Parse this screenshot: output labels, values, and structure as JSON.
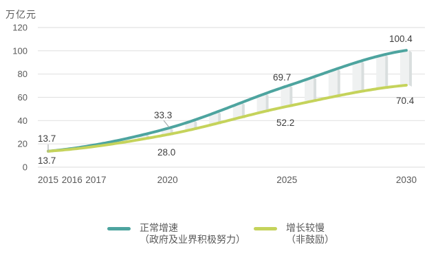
{
  "chart_data": {
    "type": "line",
    "unit_label": "万亿元",
    "x_ticks": [
      "2015",
      "2016",
      "2017",
      "2020",
      "2025",
      "2030"
    ],
    "y_ticks": [
      0,
      20,
      40,
      60,
      80,
      100,
      120
    ],
    "xlim": [
      2015,
      2030
    ],
    "ylim": [
      0,
      120
    ],
    "grid": "horizontal",
    "legend_position": "bottom",
    "colors": {
      "background": "#ffffff",
      "grid": "#e2e2e2",
      "axis_text": "#595959",
      "value_label_text": "#3d3d3d",
      "gap_band_fill": "#eff1f1",
      "gap_band_side": "#d9dede",
      "leader": "#a8adad"
    },
    "series": [
      {
        "id": "normal",
        "name": "正常增速",
        "note": "（政府及业界积极努力）",
        "color": "#4da49f",
        "x": [
          2015,
          2020,
          2025,
          2030
        ],
        "values": [
          13.7,
          33.3,
          69.7,
          100.4
        ]
      },
      {
        "id": "slow",
        "name": "增长较慢",
        "note": "（非鼓励）",
        "color": "#c5d35b",
        "x": [
          2015,
          2020,
          2025,
          2030
        ],
        "values": [
          13.7,
          28.0,
          52.2,
          70.4
        ]
      }
    ],
    "gap_band_years": [
      2019,
      2020,
      2021,
      2022,
      2023,
      2024,
      2025,
      2026,
      2027,
      2028,
      2029,
      2030
    ],
    "value_labels": [
      {
        "series": "normal",
        "year": 2015,
        "text": "13.7"
      },
      {
        "series": "slow",
        "year": 2015,
        "text": "13.7"
      },
      {
        "series": "normal",
        "year": 2020,
        "text": "33.3"
      },
      {
        "series": "slow",
        "year": 2020,
        "text": "28.0"
      },
      {
        "series": "normal",
        "year": 2025,
        "text": "69.7"
      },
      {
        "series": "slow",
        "year": 2025,
        "text": "52.2"
      },
      {
        "series": "normal",
        "year": 2030,
        "text": "100.4"
      },
      {
        "series": "slow",
        "year": 2030,
        "text": "70.4"
      }
    ]
  }
}
